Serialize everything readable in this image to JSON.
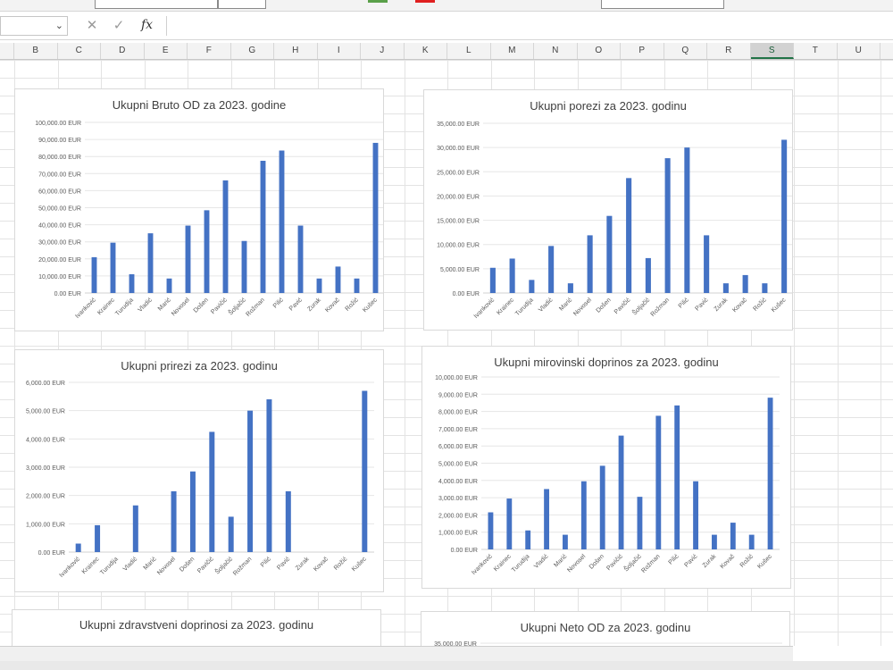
{
  "formula_bar": {
    "fx_label": "fx",
    "cancel_icon": "close-icon",
    "enter_icon": "check-icon"
  },
  "columns": [
    "B",
    "C",
    "D",
    "E",
    "F",
    "G",
    "H",
    "I",
    "J",
    "K",
    "L",
    "M",
    "N",
    "O",
    "P",
    "Q",
    "R",
    "S",
    "T",
    "U"
  ],
  "selected_column": "S",
  "colors": {
    "bar": "#4472c4",
    "selected_header": "#217346"
  },
  "charts": [
    {
      "title": "Ukupni Bruto OD za 2023. godine",
      "chart_data": {
        "type": "bar",
        "categories": [
          "Ivanković",
          "Krainec",
          "Turudija",
          "Vladić",
          "Marić",
          "Novosel",
          "Došen",
          "Pavičić",
          "Šoljačić",
          "Rožman",
          "Pilić",
          "Pavić",
          "Zurak",
          "Kovač",
          "Rožić",
          "Kušec"
        ],
        "values": [
          21000,
          29500,
          11000,
          35000,
          8500,
          39500,
          48500,
          66000,
          30500,
          77500,
          83500,
          39500,
          8500,
          15500,
          8500,
          88000
        ],
        "ylim": [
          0,
          100000
        ],
        "yticks": [
          "0.00 EUR",
          "10,000.00 EUR",
          "20,000.00 EUR",
          "30,000.00 EUR",
          "40,000.00 EUR",
          "50,000.00 EUR",
          "60,000.00 EUR",
          "70,000.00 EUR",
          "80,000.00 EUR",
          "90,000.00 EUR",
          "100,000.00 EUR"
        ],
        "grid": true
      }
    },
    {
      "title": "Ukupni porezi za 2023. godinu",
      "chart_data": {
        "type": "bar",
        "categories": [
          "Ivanković",
          "Krainec",
          "Turudija",
          "Vladić",
          "Marić",
          "Novosel",
          "Došen",
          "Pavičić",
          "Šoljačić",
          "Rožman",
          "Pilić",
          "Pavić",
          "Zurak",
          "Kovač",
          "Rožić",
          "Kušec"
        ],
        "values": [
          5200,
          7100,
          2700,
          9700,
          2000,
          11900,
          15900,
          23700,
          7200,
          27800,
          30000,
          11900,
          2000,
          3700,
          2000,
          31600
        ],
        "ylim": [
          0,
          35000
        ],
        "yticks": [
          "0.00 EUR",
          "5,000.00 EUR",
          "10,000.00 EUR",
          "15,000.00 EUR",
          "20,000.00 EUR",
          "25,000.00 EUR",
          "30,000.00 EUR",
          "35,000.00 EUR"
        ],
        "grid": true
      }
    },
    {
      "title": "Ukupni prirezi za 2023. godinu",
      "chart_data": {
        "type": "bar",
        "categories": [
          "Ivanković",
          "Krainec",
          "Turudija",
          "Vladić",
          "Marić",
          "Novosel",
          "Došen",
          "Pavičić",
          "Šoljačić",
          "Rožman",
          "Pilić",
          "Pavić",
          "Zurak",
          "Kovač",
          "Rožić",
          "Kušec"
        ],
        "values": [
          300,
          950,
          0,
          1650,
          0,
          2150,
          2850,
          4250,
          1250,
          5000,
          5400,
          2150,
          0,
          0,
          0,
          5700
        ],
        "ylim": [
          0,
          6000
        ],
        "yticks": [
          "0.00 EUR",
          "1,000.00 EUR",
          "2,000.00 EUR",
          "3,000.00 EUR",
          "4,000.00 EUR",
          "5,000.00 EUR",
          "6,000.00 EUR"
        ],
        "grid": true
      }
    },
    {
      "title": "Ukupni mirovinski doprinos za 2023. godinu",
      "chart_data": {
        "type": "bar",
        "categories": [
          "Ivanković",
          "Krainec",
          "Turudija",
          "Vladić",
          "Marić",
          "Novosel",
          "Došen",
          "Pavičić",
          "Šoljačić",
          "Rožman",
          "Pilić",
          "Pavić",
          "Zurak",
          "Kovač",
          "Rožić",
          "Kušec"
        ],
        "values": [
          2150,
          2950,
          1100,
          3500,
          850,
          3950,
          4850,
          6600,
          3050,
          7750,
          8350,
          3950,
          850,
          1550,
          850,
          8800
        ],
        "ylim": [
          0,
          10000
        ],
        "yticks": [
          "0.00 EUR",
          "1,000.00 EUR",
          "2,000.00 EUR",
          "3,000.00 EUR",
          "4,000.00 EUR",
          "5,000.00 EUR",
          "6,000.00 EUR",
          "7,000.00 EUR",
          "8,000.00 EUR",
          "9,000.00 EUR",
          "10,000.00 EUR"
        ],
        "grid": true
      }
    },
    {
      "title": "Ukupni zdravstveni doprinosi za 2023. godinu",
      "chart_data": {
        "type": "bar",
        "categories": [],
        "values": [],
        "yticks": []
      }
    },
    {
      "title": "Ukupni Neto OD za 2023. godinu",
      "chart_data": {
        "type": "bar",
        "categories": [],
        "values": [],
        "yticks": [
          "35,000.00 EUR"
        ]
      }
    }
  ]
}
